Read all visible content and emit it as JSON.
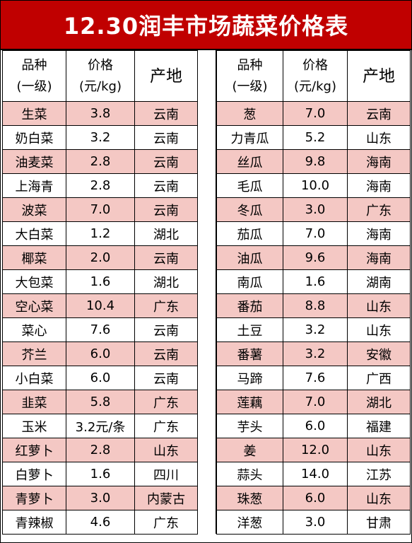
{
  "title": "12.30润丰市场蔬菜价格表",
  "headers": {
    "name_line1": "品种",
    "name_line2": "(一级)",
    "price_line1": "价格",
    "price_line2": "(元/kg)",
    "origin": "产地"
  },
  "left_rows": [
    {
      "name": "生菜",
      "price": "3.8",
      "origin": "云南"
    },
    {
      "name": "奶白菜",
      "price": "3.2",
      "origin": "云南"
    },
    {
      "name": "油麦菜",
      "price": "2.8",
      "origin": "云南"
    },
    {
      "name": "上海青",
      "price": "2.8",
      "origin": "云南"
    },
    {
      "name": "波菜",
      "price": "7.0",
      "origin": "云南"
    },
    {
      "name": "大白菜",
      "price": "1.2",
      "origin": "湖北"
    },
    {
      "name": "椰菜",
      "price": "2.0",
      "origin": "云南"
    },
    {
      "name": "大包菜",
      "price": "1.6",
      "origin": "湖北"
    },
    {
      "name": "空心菜",
      "price": "10.4",
      "origin": "广东"
    },
    {
      "name": "菜心",
      "price": "7.6",
      "origin": "云南"
    },
    {
      "name": "芥兰",
      "price": "6.0",
      "origin": "云南"
    },
    {
      "name": "小白菜",
      "price": "6.0",
      "origin": "云南"
    },
    {
      "name": "韭菜",
      "price": "5.8",
      "origin": "广东"
    },
    {
      "name": "玉米",
      "price": "3.2元/条",
      "origin": "广东"
    },
    {
      "name": "红萝卜",
      "price": "2.8",
      "origin": "山东"
    },
    {
      "name": "白萝卜",
      "price": "1.6",
      "origin": "四川"
    },
    {
      "name": "青萝卜",
      "price": "3.0",
      "origin": "内蒙古"
    },
    {
      "name": "青辣椒",
      "price": "4.6",
      "origin": "广东"
    }
  ],
  "right_rows": [
    {
      "name": "葱",
      "price": "7.0",
      "origin": "云南"
    },
    {
      "name": "力青瓜",
      "price": "5.2",
      "origin": "山东"
    },
    {
      "name": "丝瓜",
      "price": "9.8",
      "origin": "海南"
    },
    {
      "name": "毛瓜",
      "price": "10.0",
      "origin": "海南"
    },
    {
      "name": "冬瓜",
      "price": "3.0",
      "origin": "广东"
    },
    {
      "name": "茄瓜",
      "price": "7.0",
      "origin": "海南"
    },
    {
      "name": "油瓜",
      "price": "9.6",
      "origin": "海南"
    },
    {
      "name": "南瓜",
      "price": "1.6",
      "origin": "湖南"
    },
    {
      "name": "番茄",
      "price": "8.8",
      "origin": "山东"
    },
    {
      "name": "土豆",
      "price": "3.2",
      "origin": "山东"
    },
    {
      "name": "番薯",
      "price": "3.2",
      "origin": "安徽"
    },
    {
      "name": "马蹄",
      "price": "7.6",
      "origin": "广西"
    },
    {
      "name": "莲藕",
      "price": "7.0",
      "origin": "湖北"
    },
    {
      "name": "芋头",
      "price": "6.0",
      "origin": "福建"
    },
    {
      "name": "姜",
      "price": "12.0",
      "origin": "山东"
    },
    {
      "name": "蒜头",
      "price": "14.0",
      "origin": "江苏"
    },
    {
      "name": "珠葱",
      "price": "6.0",
      "origin": "山东"
    },
    {
      "name": "洋葱",
      "price": "3.0",
      "origin": "甘肃"
    }
  ],
  "colors": {
    "title_bg": "#c00000",
    "title_text": "#ffffff",
    "stripe": "#f4c8c4"
  }
}
